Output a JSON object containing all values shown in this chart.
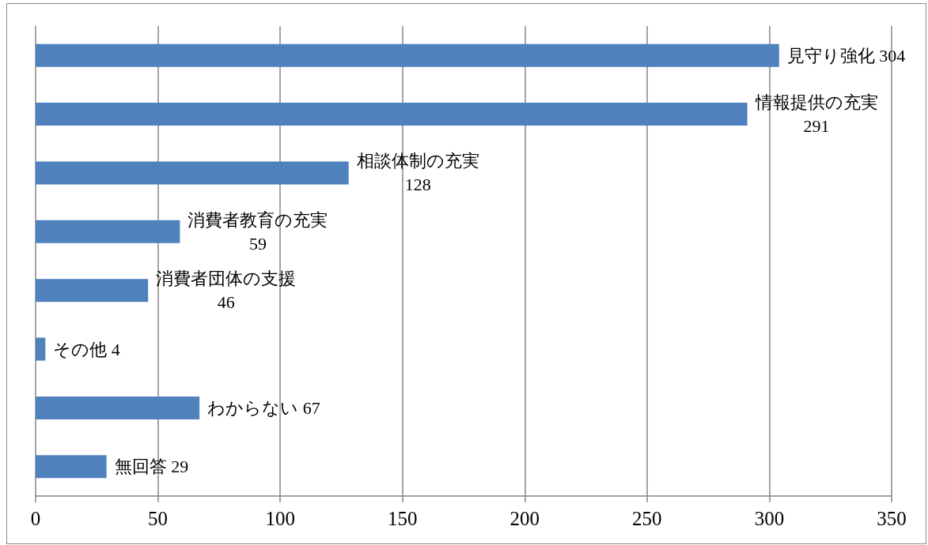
{
  "chart_data": {
    "type": "bar",
    "orientation": "horizontal",
    "categories": [
      null,
      null,
      null,
      null,
      null,
      null,
      null,
      null
    ],
    "values": [
      304,
      291,
      128,
      59,
      46,
      4,
      67,
      29
    ],
    "color": "#4f81bd",
    "value_labels": [
      "見守り強化 304",
      "情報提供の充実\n291",
      "相談体制の充実\n128",
      "消費者教育の充実\n59",
      "消費者団体の支援\n46",
      "その他 4",
      "わからない 67",
      "無回答 29"
    ],
    "xlim": [
      0,
      350
    ],
    "xticks": [
      0,
      50,
      100,
      150,
      200,
      250,
      300,
      350
    ],
    "grid": "x",
    "tick_labels": "x"
  }
}
